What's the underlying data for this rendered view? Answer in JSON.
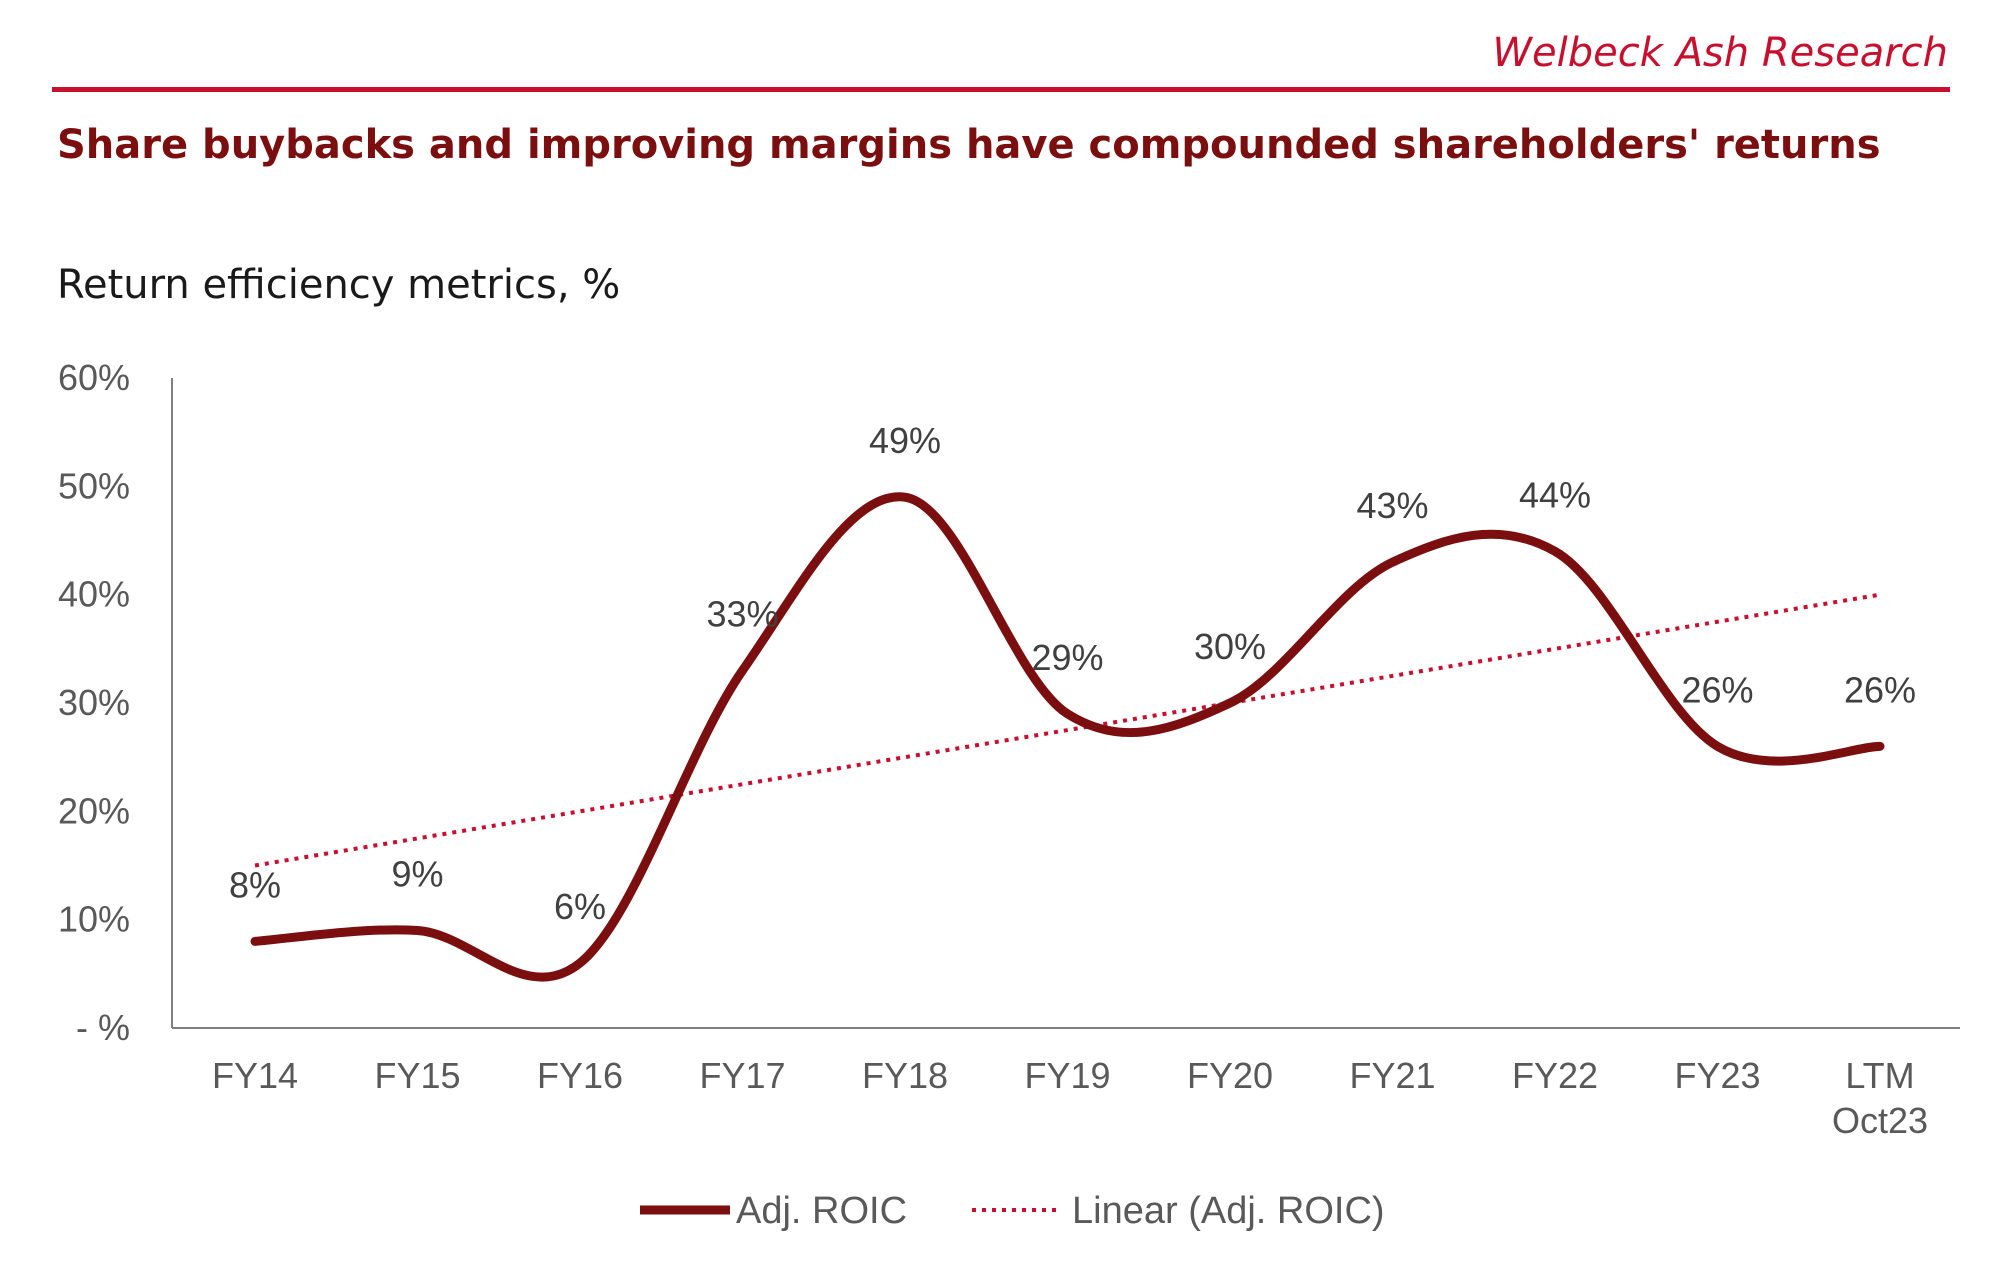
{
  "header": {
    "brand": "Welbeck Ash Research",
    "headline": "Share buybacks and improving margins have compounded shareholders' returns",
    "subtitle": "Return efficiency metrics, %"
  },
  "colors": {
    "accent": "#c8102e",
    "series": "#7b0e0e",
    "trend": "#c8102e",
    "axis": "#595959"
  },
  "chart_data": {
    "type": "line",
    "title": "Return efficiency metrics, %",
    "xlabel": "",
    "ylabel": "",
    "ylim": [
      0,
      60
    ],
    "y_ticks": [
      {
        "value": 0,
        "label": "- %"
      },
      {
        "value": 10,
        "label": "10%"
      },
      {
        "value": 20,
        "label": "20%"
      },
      {
        "value": 30,
        "label": "30%"
      },
      {
        "value": 40,
        "label": "40%"
      },
      {
        "value": 50,
        "label": "50%"
      },
      {
        "value": 60,
        "label": "60%"
      }
    ],
    "categories": [
      [
        "FY14"
      ],
      [
        "FY15"
      ],
      [
        "FY16"
      ],
      [
        "FY17"
      ],
      [
        "FY18"
      ],
      [
        "FY19"
      ],
      [
        "FY20"
      ],
      [
        "FY21"
      ],
      [
        "FY22"
      ],
      [
        "FY23"
      ],
      [
        "LTM",
        "Oct23"
      ]
    ],
    "series": [
      {
        "name": "Adj. ROIC",
        "style": "solid",
        "values": [
          8,
          9,
          6,
          33,
          49,
          29,
          30,
          43,
          44,
          26,
          26
        ],
        "labels": [
          "8%",
          "9%",
          "6%",
          "33%",
          "49%",
          "29%",
          "30%",
          "43%",
          "44%",
          "26%",
          "26%"
        ]
      }
    ],
    "trendline": {
      "name": "Linear (Adj. ROIC)",
      "style": "dotted",
      "start_value": 15,
      "end_value": 40
    },
    "legend": {
      "position": "bottom-center",
      "items": [
        "Adj. ROIC",
        "Linear (Adj. ROIC)"
      ]
    },
    "grid": false
  }
}
